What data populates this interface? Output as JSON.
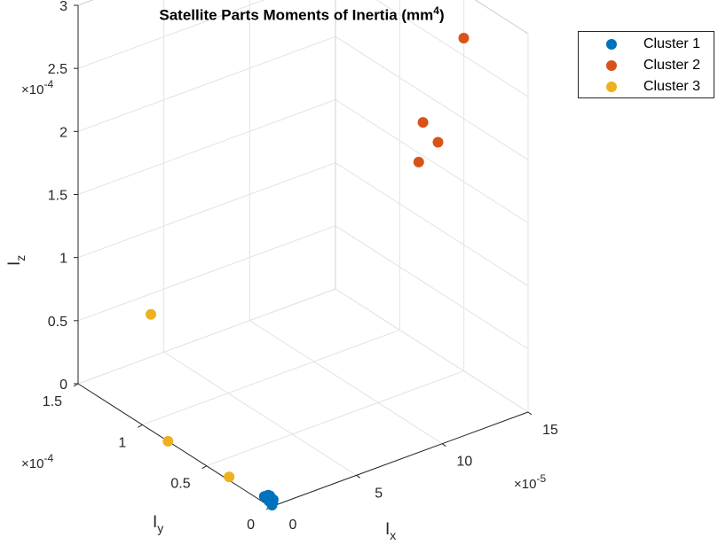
{
  "chart_data": {
    "type": "scatter3d",
    "title": "Satellite Parts Moments of Inertia (mm",
    "title_sup": "4",
    "xlabel": "I",
    "xlabel_sub": "x",
    "ylabel": "I",
    "ylabel_sub": "y",
    "zlabel": "I",
    "zlabel_sub": "z",
    "x_exponent_base": "×10",
    "x_exponent_power": "-5",
    "y_exponent_base": "×10",
    "y_exponent_power": "-4",
    "z_exponent_base": "×10",
    "z_exponent_power": "-4",
    "xlim": [
      0,
      15
    ],
    "ylim": [
      0,
      1.5
    ],
    "zlim": [
      0,
      3
    ],
    "x_ticks": [
      0,
      5,
      10,
      15
    ],
    "x_tick_labels": [
      "0",
      "5",
      "10",
      "15"
    ],
    "y_ticks": [
      0,
      0.5,
      1,
      1.5
    ],
    "y_tick_labels": [
      "0",
      "0.5",
      "1",
      "1.5"
    ],
    "z_ticks": [
      0,
      0.5,
      1,
      1.5,
      2,
      2.5,
      3
    ],
    "z_tick_labels": [
      "0",
      "0.5",
      "1",
      "1.5",
      "2",
      "2.5",
      "3"
    ],
    "grid": true,
    "legend_position": "top-right",
    "series": [
      {
        "name": "Cluster 1",
        "color": "#0072BD",
        "points": [
          {
            "x": 0.0,
            "y": 0.05,
            "z": 0.05
          },
          {
            "x": 0.1,
            "y": 0.03,
            "z": 0.04
          },
          {
            "x": 0.05,
            "y": 0.02,
            "z": 0.03
          },
          {
            "x": 0.15,
            "y": 0.04,
            "z": 0.06
          },
          {
            "x": 0.2,
            "y": 0.01,
            "z": 0.02
          },
          {
            "x": 0.08,
            "y": 0.0,
            "z": 0.01
          },
          {
            "x": 0.3,
            "y": 0.02,
            "z": 0.03
          },
          {
            "x": 0.25,
            "y": 0.04,
            "z": 0.05
          }
        ]
      },
      {
        "name": "Cluster 2",
        "color": "#D95319",
        "points": [
          {
            "x": 12.0,
            "y": 0.1,
            "z": 3.05
          },
          {
            "x": 10.0,
            "y": 0.15,
            "z": 2.45
          },
          {
            "x": 10.5,
            "y": 0.1,
            "z": 2.3
          },
          {
            "x": 9.0,
            "y": 0.05,
            "z": 2.25
          }
        ]
      },
      {
        "name": "Cluster 3",
        "color": "#EDB120",
        "points": [
          {
            "x": 0.5,
            "y": 1.0,
            "z": 0.85
          },
          {
            "x": 0.0,
            "y": 0.8,
            "z": 0.0
          },
          {
            "x": 0.2,
            "y": 0.35,
            "z": 0.0
          }
        ]
      }
    ]
  }
}
